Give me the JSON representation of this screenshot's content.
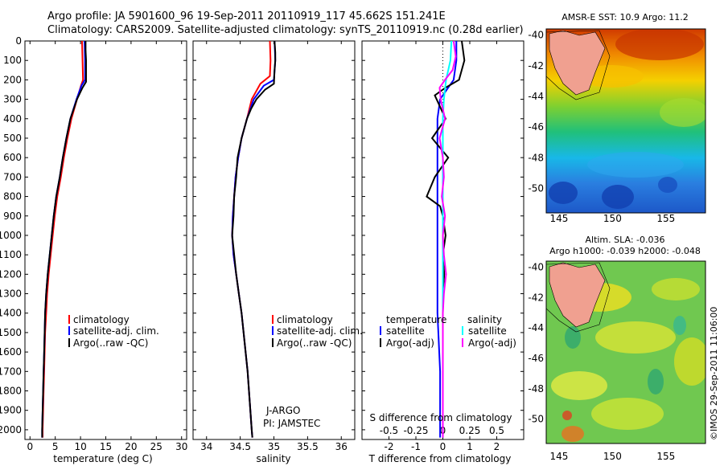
{
  "header": {
    "line1": "Argo profile: JA 5901600_96 19-Sep-2011 20110919_117 45.662S 151.241E",
    "line2": "Climatology: CARS2009. Satellite-adjusted climatology: synTS_20110919.nc (0.28d earlier)"
  },
  "colors": {
    "climatology": "#ff0000",
    "satellite": "#0000ff",
    "argo": "#000000",
    "sal_satellite": "#00ffff",
    "sal_argo": "#ff00ff"
  },
  "chart_data": [
    {
      "type": "line",
      "xlabel": "temperature (deg C)",
      "ylabel": "",
      "xlim": [
        -1,
        31
      ],
      "ylim": [
        0,
        2050
      ],
      "xticks": [
        0,
        5,
        10,
        15,
        20,
        25,
        30
      ],
      "yticks": [
        0,
        100,
        200,
        300,
        400,
        500,
        600,
        700,
        800,
        900,
        1000,
        1100,
        1200,
        1300,
        1400,
        1500,
        1600,
        1700,
        1800,
        1900,
        2000
      ],
      "legend": [
        "climatology",
        "satellite-adj. clim.",
        "Argo(..raw -QC)"
      ],
      "series": [
        {
          "name": "climatology",
          "depth": [
            0,
            100,
            200,
            230,
            300,
            400,
            500,
            600,
            700,
            800,
            900,
            1000,
            1100,
            1200,
            1300,
            1400,
            1500,
            1600,
            1700,
            1800,
            1900,
            2000,
            2040
          ],
          "values": [
            10.3,
            10.4,
            10.5,
            10.1,
            9.3,
            8.2,
            7.4,
            6.7,
            6.1,
            5.4,
            4.9,
            4.5,
            4.1,
            3.7,
            3.4,
            3.2,
            3.0,
            2.9,
            2.8,
            2.7,
            2.6,
            2.5,
            2.5
          ]
        },
        {
          "name": "satellite-adj. clim.",
          "depth": [
            0,
            100,
            200,
            230,
            300,
            400,
            500,
            600,
            700,
            800,
            900,
            1000,
            1100,
            1200,
            1300,
            1400,
            1500,
            1600,
            1700,
            1800,
            1900,
            2000,
            2040
          ],
          "values": [
            10.8,
            10.9,
            10.9,
            10.2,
            9.2,
            8.0,
            7.2,
            6.5,
            5.9,
            5.2,
            4.7,
            4.3,
            3.9,
            3.5,
            3.2,
            3.0,
            2.9,
            2.8,
            2.7,
            2.6,
            2.5,
            2.4,
            2.4
          ]
        },
        {
          "name": "Argo(..raw -QC)",
          "depth": [
            0,
            50,
            100,
            150,
            210,
            240,
            300,
            400,
            500,
            600,
            700,
            800,
            900,
            1000,
            1100,
            1200,
            1300,
            1400,
            1500,
            1600,
            1700,
            1800,
            1900,
            2000,
            2040
          ],
          "values": [
            11.0,
            11.0,
            11.1,
            11.1,
            11.1,
            10.4,
            9.3,
            8.0,
            7.2,
            6.5,
            5.9,
            5.2,
            4.7,
            4.3,
            3.9,
            3.5,
            3.2,
            3.0,
            2.9,
            2.8,
            2.7,
            2.6,
            2.5,
            2.4,
            2.4
          ]
        }
      ]
    },
    {
      "type": "line",
      "xlabel": "salinity",
      "ylabel": "",
      "xlim": [
        33.8,
        36.2
      ],
      "ylim": [
        0,
        2050
      ],
      "xticks": [
        "34",
        "34.5",
        "35",
        "35.5",
        "36"
      ],
      "legend": [
        "climatology",
        "satellite-adj. clim.",
        "Argo(..raw -QC)"
      ],
      "annotation": [
        "J-ARGO",
        "PI: JAMSTEC"
      ],
      "series": [
        {
          "name": "climatology",
          "depth": [
            0,
            100,
            180,
            220,
            300,
            400,
            500,
            600,
            700,
            800,
            900,
            1000,
            1100,
            1200,
            1300,
            1400,
            1500,
            1600,
            1700,
            1800,
            1900,
            2000,
            2040
          ],
          "values": [
            34.94,
            34.95,
            34.94,
            34.8,
            34.67,
            34.6,
            34.52,
            34.47,
            34.43,
            34.41,
            34.39,
            34.38,
            34.4,
            34.44,
            34.48,
            34.52,
            34.55,
            34.58,
            34.61,
            34.63,
            34.65,
            34.67,
            34.68
          ]
        },
        {
          "name": "satellite-adj. clim.",
          "depth": [
            0,
            100,
            200,
            230,
            300,
            400,
            500,
            600,
            700,
            800,
            900,
            1000,
            1100,
            1200,
            1300,
            1400,
            1500,
            1600,
            1700,
            1800,
            1900,
            2000,
            2040
          ],
          "values": [
            35.01,
            35.02,
            35.0,
            34.85,
            34.7,
            34.6,
            34.52,
            34.47,
            34.43,
            34.41,
            34.39,
            34.38,
            34.4,
            34.44,
            34.48,
            34.52,
            34.55,
            34.58,
            34.61,
            34.63,
            34.65,
            34.67,
            34.68
          ]
        },
        {
          "name": "Argo(..raw -QC)",
          "depth": [
            0,
            60,
            100,
            150,
            220,
            250,
            300,
            350,
            400,
            500,
            600,
            700,
            800,
            900,
            1000,
            1100,
            1200,
            1300,
            1400,
            1500,
            1600,
            1700,
            1800,
            1900,
            2000,
            2040
          ],
          "values": [
            35.01,
            35.02,
            35.02,
            35.01,
            35.0,
            34.87,
            34.74,
            34.66,
            34.6,
            34.52,
            34.46,
            34.44,
            34.41,
            34.4,
            34.38,
            34.41,
            34.44,
            34.48,
            34.52,
            34.55,
            34.58,
            34.61,
            34.63,
            34.65,
            34.67,
            34.68
          ]
        }
      ]
    },
    {
      "type": "line",
      "xlabel": "T difference from climatology",
      "ylabel": "",
      "xlim": [
        -3,
        3
      ],
      "ylim": [
        0,
        2050
      ],
      "xticks": [
        "-2",
        "-1",
        "0",
        "1",
        "2"
      ],
      "top_axis_label": "S difference from climatology",
      "top_ticks": [
        "-0.5",
        "-0.25",
        "0",
        "0.25",
        "0.5"
      ],
      "legend_titles": [
        "temperature",
        "salinity"
      ],
      "legend": [
        "satellite",
        "Argo(-adj)",
        "satellite",
        "Argo(-adj)"
      ],
      "series": [
        {
          "name": "satellite",
          "depth": [
            0,
            100,
            200,
            300,
            400,
            600,
            800,
            1000,
            1200,
            1400,
            1700,
            2040
          ],
          "values": [
            0.5,
            0.5,
            0.4,
            -0.1,
            -0.2,
            -0.2,
            -0.2,
            -0.2,
            -0.2,
            -0.2,
            -0.1,
            -0.1
          ]
        },
        {
          "name": "Argo(-adj)",
          "depth": [
            0,
            100,
            200,
            240,
            280,
            400,
            500,
            600,
            700,
            800,
            850,
            900,
            1000,
            1100,
            1200,
            1300,
            1500,
            1700,
            2040
          ],
          "values": [
            0.7,
            0.8,
            0.6,
            0.1,
            -0.3,
            0.1,
            -0.4,
            0.2,
            -0.3,
            -0.6,
            -0.1,
            0.0,
            0.1,
            0.0,
            0.05,
            0.0,
            0.0,
            0.0,
            0.0
          ]
        },
        {
          "name": "satellite",
          "depth": [
            0,
            100,
            200,
            300,
            400,
            600,
            800,
            1000,
            1200,
            1400,
            1700,
            2040
          ],
          "values": [
            0.08,
            0.07,
            0.03,
            0.01,
            0.0,
            0.0,
            0.0,
            0.0,
            0.0,
            0.0,
            0.0,
            0.0
          ]
        },
        {
          "name": "Argo(-adj)",
          "depth": [
            0,
            80,
            150,
            200,
            240,
            300,
            400,
            500,
            600,
            700,
            800,
            900,
            1000,
            1100,
            1200,
            1300,
            1400,
            1500,
            1700,
            2040
          ],
          "values": [
            0.1,
            0.12,
            0.09,
            0.02,
            -0.03,
            -0.02,
            0.02,
            -0.03,
            0.0,
            0.01,
            -0.01,
            0.02,
            0.0,
            0.01,
            0.03,
            0.01,
            0.0,
            0.0,
            0.0,
            0.0
          ]
        }
      ]
    },
    {
      "type": "heatmap",
      "title": "AMSR-E SST: 10.9 Argo: 11.2",
      "xticks": [
        "145",
        "150",
        "155"
      ],
      "yticks": [
        "-40",
        "-42",
        "-44",
        "-46",
        "-48",
        "-50"
      ],
      "xlim": [
        143.8,
        158.7
      ],
      "ylim": [
        -51.6,
        -39.6
      ],
      "marker": {
        "lon": 151.24,
        "lat": -45.66
      }
    },
    {
      "type": "heatmap",
      "title": "Altim. SLA: -0.036",
      "subtitle": "Argo h1000: -0.039 h2000: -0.048",
      "xticks": [
        "145",
        "150",
        "155"
      ],
      "yticks": [
        "-40",
        "-42",
        "-44",
        "-46",
        "-48",
        "-50"
      ],
      "xlim": [
        143.8,
        158.7
      ],
      "ylim": [
        -51.6,
        -39.6
      ],
      "marker": {
        "lon": 151.24,
        "lat": -45.66
      }
    }
  ],
  "footer": {
    "credit": "©IMOS 29-Sep-2011 11:06:00"
  }
}
